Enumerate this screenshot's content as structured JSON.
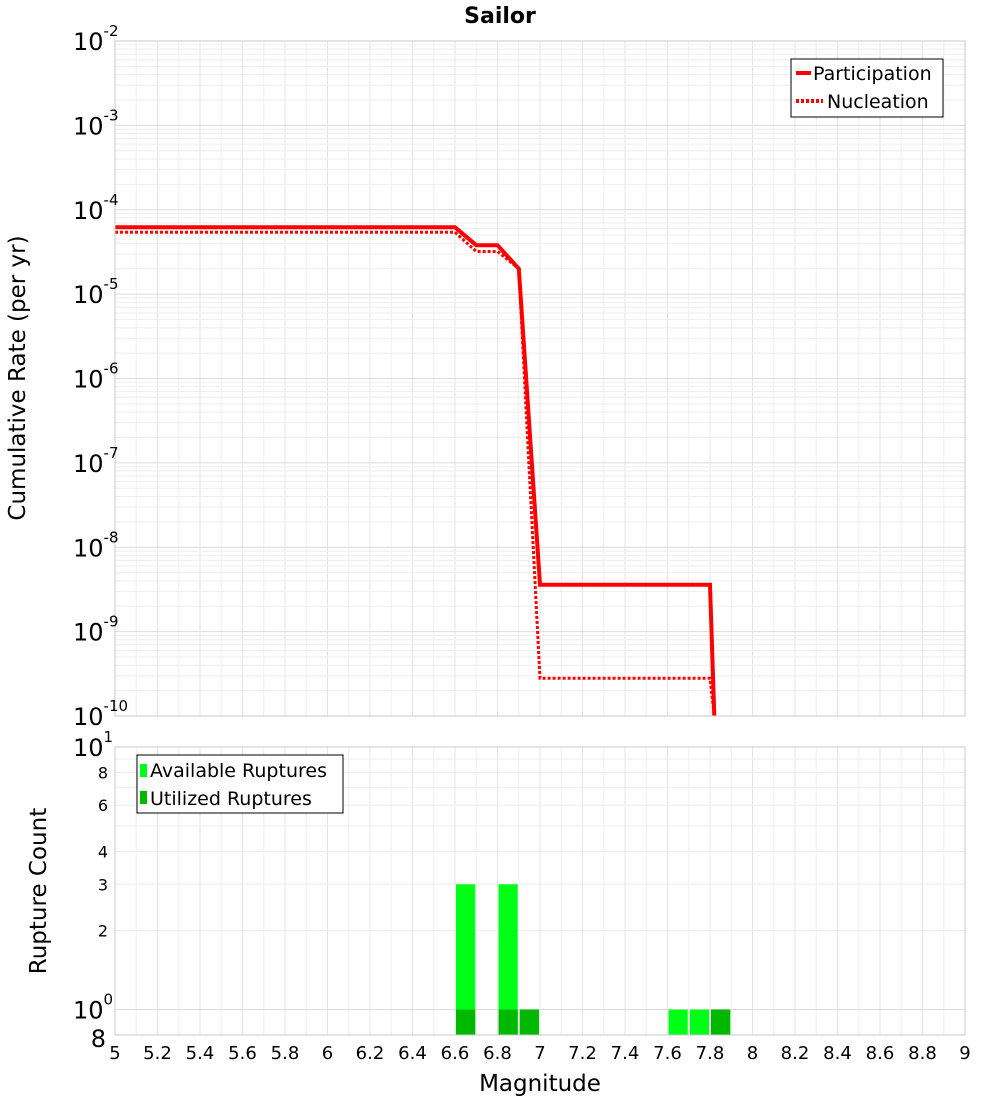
{
  "chart_data": [
    {
      "type": "line",
      "title": "Sailor",
      "xlabel": "Magnitude",
      "ylabel": "Cumulative Rate (per yr)",
      "yscale": "log",
      "xlim": [
        5,
        9
      ],
      "ylim": [
        1e-10,
        0.01
      ],
      "y_decade_labels": [
        {
          "base": "10",
          "exp": "-10"
        },
        {
          "base": "10",
          "exp": "-9"
        },
        {
          "base": "10",
          "exp": "-8"
        },
        {
          "base": "10",
          "exp": "-7"
        },
        {
          "base": "10",
          "exp": "-6"
        },
        {
          "base": "10",
          "exp": "-5"
        },
        {
          "base": "10",
          "exp": "-4"
        },
        {
          "base": "10",
          "exp": "-3"
        },
        {
          "base": "10",
          "exp": "-2"
        }
      ],
      "legend_position": "top-right",
      "series": [
        {
          "name": "Participation",
          "style": "solid",
          "color": "#ff0000",
          "x": [
            5.0,
            6.6,
            6.7,
            6.8,
            6.9,
            7.0,
            7.8,
            7.82
          ],
          "y": [
            6.2e-05,
            6.2e-05,
            3.8e-05,
            3.8e-05,
            2e-05,
            3.6e-09,
            3.6e-09,
            1e-10
          ]
        },
        {
          "name": "Nucleation",
          "style": "dotted",
          "color": "#ff0000",
          "x": [
            5.0,
            6.6,
            6.7,
            6.8,
            6.9,
            7.0,
            7.8,
            7.82
          ],
          "y": [
            5.4e-05,
            5.4e-05,
            3.2e-05,
            3.2e-05,
            2e-05,
            2.8e-10,
            2.8e-10,
            1e-10
          ]
        }
      ]
    },
    {
      "type": "bar",
      "xlabel": "Magnitude",
      "ylabel": "Rupture Count",
      "yscale": "log",
      "xlim": [
        5,
        9
      ],
      "ylim": [
        0.8,
        10
      ],
      "bin_width": 0.1,
      "x_tick_labels": [
        "5",
        "5.2",
        "5.4",
        "5.6",
        "5.8",
        "6",
        "6.2",
        "6.4",
        "6.6",
        "6.8",
        "7",
        "7.2",
        "7.4",
        "7.6",
        "7.8",
        "8",
        "8.2",
        "8.4",
        "8.6",
        "8.8",
        "9"
      ],
      "y_decade_labels": [
        {
          "base": "10",
          "exp": "0",
          "value": 1
        },
        {
          "base": "10",
          "exp": "1",
          "value": 10
        }
      ],
      "y_minor_labels": [
        {
          "label": "8",
          "value": 0.8
        },
        {
          "label": "2",
          "value": 2
        },
        {
          "label": "3",
          "value": 3
        },
        {
          "label": "4",
          "value": 4
        },
        {
          "label": "6",
          "value": 6
        },
        {
          "label": "8",
          "value": 8
        }
      ],
      "legend_position": "top-left",
      "series": [
        {
          "name": "Available Ruptures",
          "color": "#00ff17",
          "bins": [
            6.65,
            6.85,
            6.95,
            7.65,
            7.75,
            7.85
          ],
          "values": [
            3,
            3,
            1,
            1,
            1,
            1
          ]
        },
        {
          "name": "Utilized Ruptures",
          "color": "#00b800",
          "bins": [
            6.65,
            6.85,
            6.95,
            7.85
          ],
          "values": [
            1,
            1,
            1,
            1
          ]
        }
      ]
    }
  ]
}
